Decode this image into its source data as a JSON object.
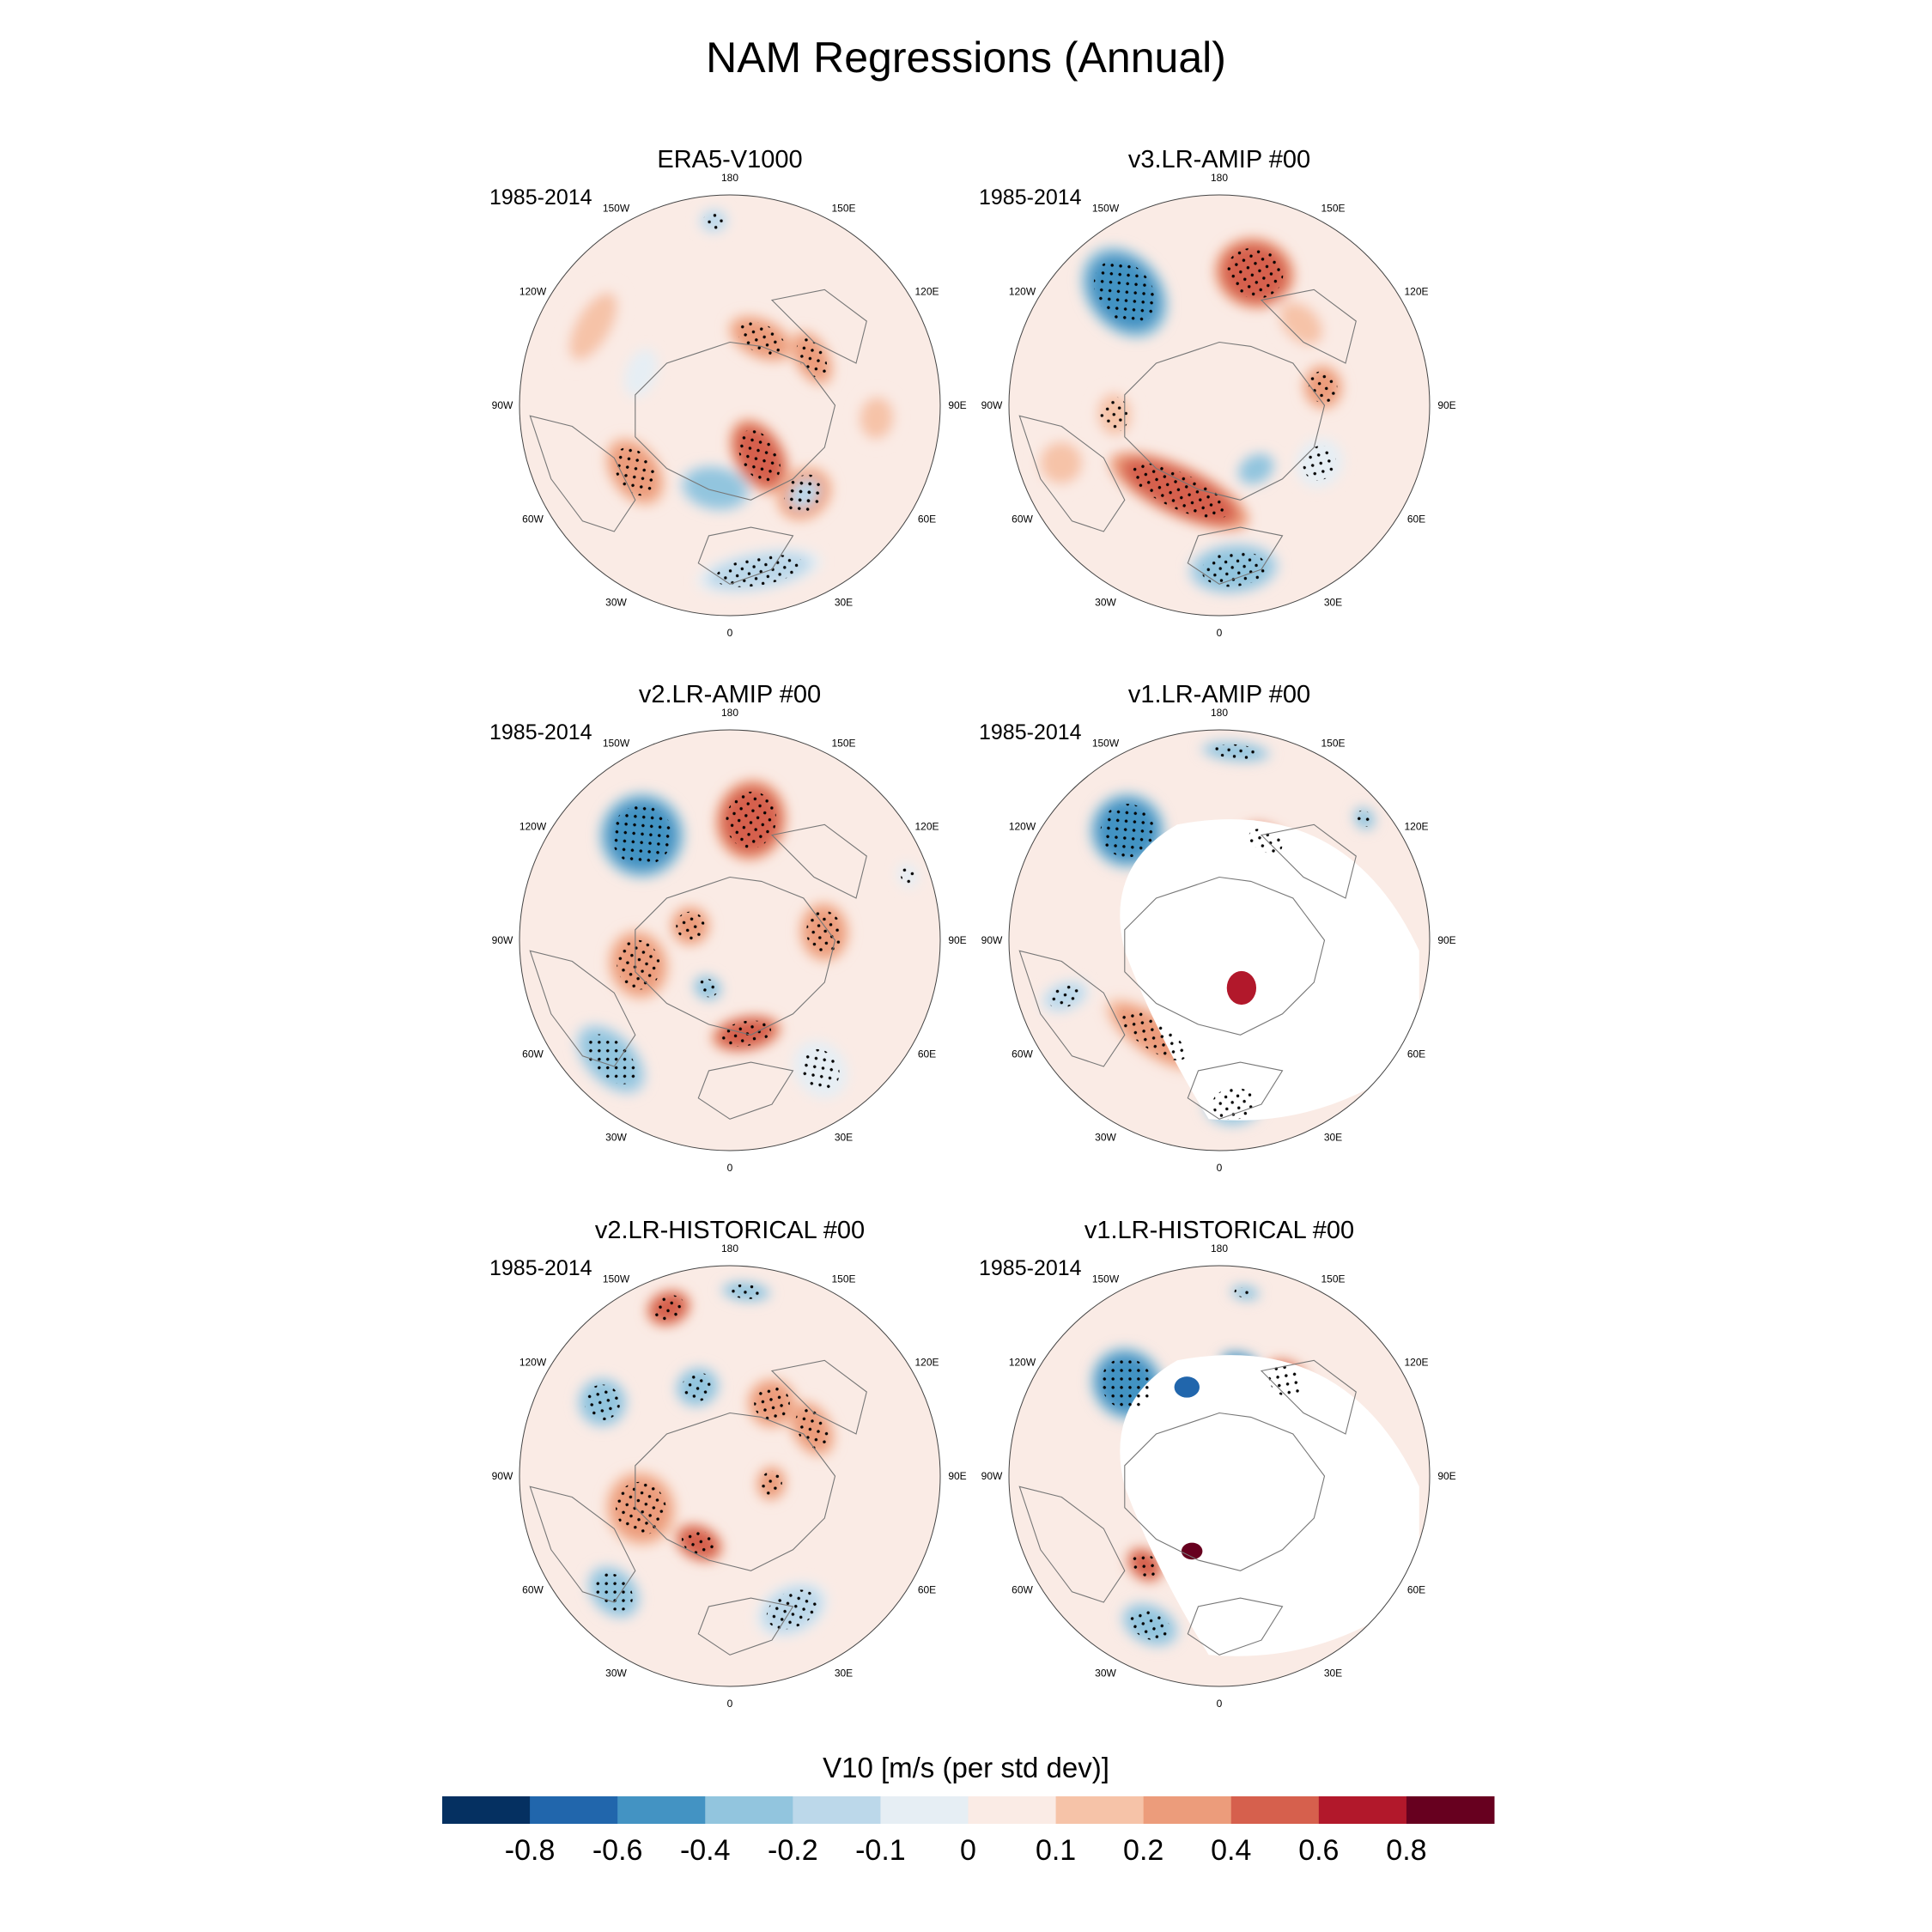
{
  "title": "NAM Regressions (Annual)",
  "panels": [
    {
      "title": "ERA5-V1000",
      "period": "1985-2014",
      "masked": false,
      "blobs": [
        {
          "a": 150,
          "r": 0.28,
          "rx": 0.1,
          "ry": 0.16,
          "v": 0.5,
          "dots": true
        },
        {
          "a": 190,
          "r": 0.4,
          "rx": 0.14,
          "ry": 0.09,
          "v": -0.3,
          "dots": false
        },
        {
          "a": 140,
          "r": 0.55,
          "rx": 0.12,
          "ry": 0.1,
          "v": 0.2,
          "dots": true
        },
        {
          "a": 235,
          "r": 0.55,
          "rx": 0.15,
          "ry": 0.1,
          "v": 0.3,
          "dots": true
        },
        {
          "a": 25,
          "r": 0.35,
          "rx": 0.14,
          "ry": 0.08,
          "v": 0.3,
          "dots": true
        },
        {
          "a": 60,
          "r": 0.45,
          "rx": 0.12,
          "ry": 0.07,
          "v": 0.2,
          "dots": true
        },
        {
          "a": 170,
          "r": 0.8,
          "rx": 0.25,
          "ry": 0.08,
          "v": -0.2,
          "dots": true
        },
        {
          "a": 140,
          "r": 0.55,
          "rx": 0.08,
          "ry": 0.06,
          "v": -0.2,
          "dots": true
        },
        {
          "a": 355,
          "r": 0.88,
          "rx": 0.06,
          "ry": 0.05,
          "v": -0.2,
          "dots": true
        },
        {
          "a": 290,
          "r": 0.45,
          "rx": 0.1,
          "ry": 0.06,
          "v": -0.1,
          "dots": false
        },
        {
          "a": 95,
          "r": 0.7,
          "rx": 0.1,
          "ry": 0.08,
          "v": 0.1,
          "dots": false
        },
        {
          "a": 300,
          "r": 0.75,
          "rx": 0.18,
          "ry": 0.08,
          "v": 0.1,
          "dots": false
        }
      ]
    },
    {
      "title": "v3.LR-AMIP  #00",
      "period": "1985-2014",
      "masked": false,
      "blobs": [
        {
          "a": 320,
          "r": 0.7,
          "rx": 0.15,
          "ry": 0.2,
          "v": -0.6,
          "dots": true
        },
        {
          "a": 15,
          "r": 0.65,
          "rx": 0.16,
          "ry": 0.14,
          "v": 0.4,
          "dots": true
        },
        {
          "a": 205,
          "r": 0.45,
          "rx": 0.3,
          "ry": 0.1,
          "v": 0.4,
          "dots": true
        },
        {
          "a": 175,
          "r": 0.78,
          "rx": 0.18,
          "ry": 0.1,
          "v": -0.4,
          "dots": true
        },
        {
          "a": 120,
          "r": 0.55,
          "rx": 0.1,
          "ry": 0.09,
          "v": -0.1,
          "dots": true
        },
        {
          "a": 80,
          "r": 0.5,
          "rx": 0.09,
          "ry": 0.08,
          "v": 0.3,
          "dots": true
        },
        {
          "a": 45,
          "r": 0.55,
          "rx": 0.12,
          "ry": 0.08,
          "v": 0.1,
          "dots": false
        },
        {
          "a": 150,
          "r": 0.35,
          "rx": 0.08,
          "ry": 0.06,
          "v": -0.3,
          "dots": false
        },
        {
          "a": 265,
          "r": 0.5,
          "rx": 0.1,
          "ry": 0.08,
          "v": 0.1,
          "dots": true
        },
        {
          "a": 250,
          "r": 0.8,
          "rx": 0.1,
          "ry": 0.1,
          "v": 0.1,
          "dots": false
        }
      ]
    },
    {
      "title": "v2.LR-AMIP  #00",
      "period": "1985-2014",
      "masked": false,
      "blobs": [
        {
          "a": 320,
          "r": 0.65,
          "rx": 0.17,
          "ry": 0.17,
          "v": -0.6,
          "dots": true
        },
        {
          "a": 10,
          "r": 0.58,
          "rx": 0.14,
          "ry": 0.16,
          "v": 0.4,
          "dots": true
        },
        {
          "a": 255,
          "r": 0.45,
          "rx": 0.14,
          "ry": 0.12,
          "v": 0.2,
          "dots": true
        },
        {
          "a": 290,
          "r": 0.2,
          "rx": 0.08,
          "ry": 0.08,
          "v": 0.3,
          "dots": true
        },
        {
          "a": 170,
          "r": 0.45,
          "rx": 0.14,
          "ry": 0.07,
          "v": 0.4,
          "dots": true
        },
        {
          "a": 205,
          "r": 0.25,
          "rx": 0.06,
          "ry": 0.05,
          "v": -0.4,
          "dots": true
        },
        {
          "a": 225,
          "r": 0.8,
          "rx": 0.17,
          "ry": 0.1,
          "v": -0.4,
          "dots": true
        },
        {
          "a": 145,
          "r": 0.75,
          "rx": 0.1,
          "ry": 0.12,
          "v": -0.1,
          "dots": true
        },
        {
          "a": 85,
          "r": 0.45,
          "rx": 0.12,
          "ry": 0.1,
          "v": 0.2,
          "dots": true
        },
        {
          "a": 70,
          "r": 0.9,
          "rx": 0.05,
          "ry": 0.04,
          "v": -0.1,
          "dots": true
        }
      ]
    },
    {
      "title": "v1.LR-AMIP  #00",
      "period": "1985-2014",
      "masked": true,
      "blobs": [
        {
          "a": 320,
          "r": 0.68,
          "rx": 0.15,
          "ry": 0.15,
          "v": -0.6,
          "dots": true
        },
        {
          "a": 5,
          "r": 0.9,
          "rx": 0.14,
          "ry": 0.04,
          "v": -0.4,
          "dots": true
        },
        {
          "a": 25,
          "r": 0.52,
          "rx": 0.1,
          "ry": 0.06,
          "v": 0.4,
          "dots": true
        },
        {
          "a": 215,
          "r": 0.55,
          "rx": 0.22,
          "ry": 0.08,
          "v": 0.3,
          "dots": true
        },
        {
          "a": 175,
          "r": 0.78,
          "rx": 0.12,
          "ry": 0.09,
          "v": -0.4,
          "dots": true
        },
        {
          "a": 155,
          "r": 0.25,
          "rx": 0.07,
          "ry": 0.08,
          "v": 0.6,
          "dots": false
        },
        {
          "a": 80,
          "r": 0.35,
          "rx": 0.05,
          "ry": 0.05,
          "v": 0.4,
          "dots": false
        },
        {
          "a": 50,
          "r": 0.9,
          "rx": 0.05,
          "ry": 0.04,
          "v": -0.3,
          "dots": true
        },
        {
          "a": 250,
          "r": 0.78,
          "rx": 0.06,
          "ry": 0.1,
          "v": -0.2,
          "dots": true
        }
      ]
    },
    {
      "title": "v2.LR-HISTORICAL  #00",
      "period": "1985-2014",
      "masked": false,
      "blobs": [
        {
          "a": 340,
          "r": 0.85,
          "rx": 0.09,
          "ry": 0.07,
          "v": 0.4,
          "dots": true
        },
        {
          "a": 5,
          "r": 0.88,
          "rx": 0.1,
          "ry": 0.04,
          "v": -0.3,
          "dots": true
        },
        {
          "a": 300,
          "r": 0.7,
          "rx": 0.1,
          "ry": 0.1,
          "v": -0.3,
          "dots": true
        },
        {
          "a": 340,
          "r": 0.45,
          "rx": 0.09,
          "ry": 0.08,
          "v": -0.4,
          "dots": true
        },
        {
          "a": 30,
          "r": 0.4,
          "rx": 0.1,
          "ry": 0.1,
          "v": 0.3,
          "dots": true
        },
        {
          "a": 250,
          "r": 0.45,
          "rx": 0.15,
          "ry": 0.14,
          "v": 0.2,
          "dots": true
        },
        {
          "a": 205,
          "r": 0.35,
          "rx": 0.1,
          "ry": 0.07,
          "v": 0.4,
          "dots": true
        },
        {
          "a": 225,
          "r": 0.78,
          "rx": 0.12,
          "ry": 0.09,
          "v": -0.4,
          "dots": true
        },
        {
          "a": 155,
          "r": 0.7,
          "rx": 0.15,
          "ry": 0.1,
          "v": -0.2,
          "dots": true
        },
        {
          "a": 60,
          "r": 0.45,
          "rx": 0.12,
          "ry": 0.08,
          "v": 0.2,
          "dots": true
        },
        {
          "a": 100,
          "r": 0.2,
          "rx": 0.07,
          "ry": 0.06,
          "v": 0.3,
          "dots": true
        }
      ]
    },
    {
      "title": "v1.LR-HISTORICAL  #00",
      "period": "1985-2014",
      "masked": true,
      "blobs": [
        {
          "a": 315,
          "r": 0.62,
          "rx": 0.14,
          "ry": 0.15,
          "v": -0.6,
          "dots": true
        },
        {
          "a": 340,
          "r": 0.45,
          "rx": 0.06,
          "ry": 0.05,
          "v": -0.8,
          "dots": false
        },
        {
          "a": 10,
          "r": 0.55,
          "rx": 0.08,
          "ry": 0.04,
          "v": -0.6,
          "dots": false
        },
        {
          "a": 35,
          "r": 0.55,
          "rx": 0.1,
          "ry": 0.08,
          "v": 0.4,
          "dots": true
        },
        {
          "a": 8,
          "r": 0.88,
          "rx": 0.06,
          "ry": 0.03,
          "v": -0.3,
          "dots": true
        },
        {
          "a": 220,
          "r": 0.55,
          "rx": 0.08,
          "ry": 0.06,
          "v": 0.4,
          "dots": true
        },
        {
          "a": 200,
          "r": 0.38,
          "rx": 0.05,
          "ry": 0.04,
          "v": 0.8,
          "dots": false
        },
        {
          "a": 205,
          "r": 0.78,
          "rx": 0.12,
          "ry": 0.08,
          "v": -0.4,
          "dots": true
        },
        {
          "a": 110,
          "r": 0.15,
          "rx": 0.1,
          "ry": 0.08,
          "v": 0.3,
          "dots": false
        }
      ]
    }
  ],
  "lon_labels": [
    "180",
    "150E",
    "120E",
    "90E",
    "60E",
    "30E",
    "0",
    "30W",
    "60W",
    "90W",
    "120W",
    "150W"
  ],
  "colorbar": {
    "label": "V10 [m/s (per std dev)]",
    "colors": [
      "#053061",
      "#2166ac",
      "#4393c3",
      "#92c5de",
      "#bcd8ea",
      "#e6eef4",
      "#faebe5",
      "#f6c3a8",
      "#ec9c7b",
      "#d6604d",
      "#b2182b",
      "#67001f"
    ],
    "ticks": [
      "-0.8",
      "-0.6",
      "-0.4",
      "-0.2",
      "-0.1",
      "0",
      "0.1",
      "0.2",
      "0.4",
      "0.6",
      "0.8"
    ]
  }
}
